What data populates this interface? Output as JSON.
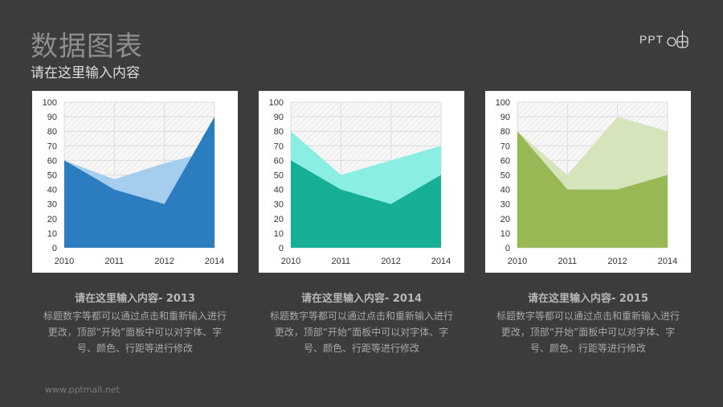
{
  "header": {
    "title": "数据图表",
    "subtitle": "请在这里输入内容",
    "logo_text": "PPT"
  },
  "footer": {
    "url": "www.pptmall.net"
  },
  "colors": {
    "background": "#3c3c3c",
    "chart1_back": "#a4cdee",
    "chart1_front": "#2b7dbf",
    "chart2_back": "#8aeee2",
    "chart2_front": "#17ae96",
    "chart3_back": "#d6e4bc",
    "chart3_front": "#97b855"
  },
  "cards": [
    {
      "caption_title": "请在这里输入内容- 2013",
      "caption_lines": [
        "标题数字等都可以通过点击和重新输入进行",
        "更改，顶部“开始”面板中可以对字体、字",
        "号、颜色、行距等进行修改"
      ]
    },
    {
      "caption_title": "请在这里输入内容- 2014",
      "caption_lines": [
        "标题数字等都可以通过点击和重新输入进行",
        "更改，顶部“开始”面板中可以对字体、字",
        "号、颜色、行距等进行修改"
      ]
    },
    {
      "caption_title": "请在这里输入内容- 2015",
      "caption_lines": [
        "标题数字等都可以通过点击和重新输入进行",
        "更改，顶部“开始”面板中可以对字体、字",
        "号、颜色、行距等进行修改"
      ]
    }
  ],
  "chart_data": [
    {
      "type": "area",
      "categories": [
        "2010",
        "2011",
        "2012",
        "2014"
      ],
      "ylim": [
        0,
        100
      ],
      "yticks": [
        0,
        10,
        20,
        30,
        40,
        50,
        60,
        70,
        80,
        90,
        100
      ],
      "series": [
        {
          "name": "back",
          "values": [
            60,
            47,
            58,
            67
          ]
        },
        {
          "name": "front",
          "values": [
            60,
            40,
            30,
            90
          ]
        }
      ]
    },
    {
      "type": "area",
      "categories": [
        "2010",
        "2011",
        "2012",
        "2014"
      ],
      "ylim": [
        0,
        100
      ],
      "yticks": [
        0,
        10,
        20,
        30,
        40,
        50,
        60,
        70,
        80,
        90,
        100
      ],
      "series": [
        {
          "name": "back",
          "values": [
            80,
            50,
            60,
            70
          ]
        },
        {
          "name": "front",
          "values": [
            60,
            40,
            30,
            50
          ]
        }
      ]
    },
    {
      "type": "area",
      "categories": [
        "2010",
        "2011",
        "2012",
        "2014"
      ],
      "ylim": [
        0,
        100
      ],
      "yticks": [
        0,
        10,
        20,
        30,
        40,
        50,
        60,
        70,
        80,
        90,
        100
      ],
      "series": [
        {
          "name": "back",
          "values": [
            80,
            50,
            90,
            80
          ]
        },
        {
          "name": "front",
          "values": [
            80,
            40,
            40,
            50
          ]
        }
      ]
    }
  ]
}
